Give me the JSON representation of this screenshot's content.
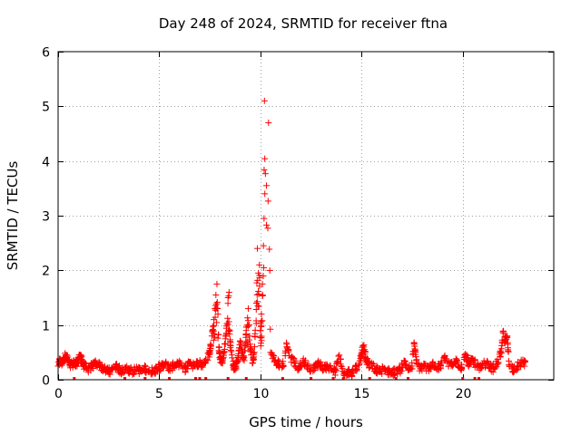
{
  "chart_data": {
    "type": "scatter",
    "title": "Day 248 of 2024, SRMTID for receiver ftna",
    "xlabel": "GPS time / hours",
    "ylabel": "SRMTID / TECUs",
    "xlim": [
      0,
      24.5
    ],
    "ylim": [
      0,
      6
    ],
    "xticks": [
      0,
      5,
      10,
      15,
      20
    ],
    "yticks": [
      0,
      1,
      2,
      3,
      4,
      5,
      6
    ],
    "grid": true,
    "marker": "plus",
    "color": "#ff0000",
    "series": [
      {
        "name": "SRMTID",
        "x": [
          0.0,
          0.1,
          0.2,
          0.3,
          0.4,
          0.5,
          0.6,
          0.7,
          0.8,
          0.9,
          1.0,
          1.1,
          1.2,
          1.3,
          1.5,
          1.7,
          1.9,
          2.1,
          2.3,
          2.5,
          2.7,
          2.9,
          3.1,
          3.3,
          3.5,
          3.7,
          3.9,
          4.1,
          4.3,
          4.5,
          4.7,
          4.9,
          5.1,
          5.3,
          5.5,
          5.7,
          5.9,
          6.1,
          6.3,
          6.5,
          6.7,
          6.9,
          7.1,
          7.3,
          7.5,
          7.6,
          7.7,
          7.75,
          7.8,
          7.85,
          7.9,
          7.95,
          8.0,
          8.1,
          8.2,
          8.3,
          8.4,
          8.45,
          8.5,
          8.6,
          8.7,
          8.8,
          8.9,
          9.0,
          9.1,
          9.2,
          9.3,
          9.4,
          9.5,
          9.6,
          9.7,
          9.8,
          9.85,
          9.9,
          9.95,
          10.0,
          10.05,
          10.1,
          10.15,
          10.2,
          10.3,
          10.4,
          10.5,
          10.7,
          10.9,
          11.1,
          11.3,
          11.5,
          11.7,
          11.9,
          12.1,
          12.3,
          12.5,
          12.7,
          12.9,
          13.1,
          13.3,
          13.5,
          13.7,
          13.9,
          14.1,
          14.3,
          14.5,
          14.7,
          14.9,
          15.0,
          15.1,
          15.2,
          15.3,
          15.5,
          15.7,
          15.9,
          16.1,
          16.3,
          16.5,
          16.7,
          16.9,
          17.1,
          17.3,
          17.5,
          17.6,
          17.7,
          17.9,
          18.1,
          18.3,
          18.5,
          18.7,
          18.9,
          19.1,
          19.3,
          19.5,
          19.7,
          19.9,
          20.1,
          20.2,
          20.3,
          20.5,
          20.7,
          20.9,
          21.1,
          21.3,
          21.5,
          21.7,
          21.9,
          22.0,
          22.1,
          22.2,
          22.3,
          22.5,
          22.7,
          22.9
        ],
        "y": [
          0.25,
          0.35,
          0.3,
          0.4,
          0.45,
          0.35,
          0.25,
          0.3,
          0.28,
          0.3,
          0.35,
          0.45,
          0.3,
          0.25,
          0.2,
          0.25,
          0.3,
          0.25,
          0.18,
          0.15,
          0.2,
          0.25,
          0.15,
          0.2,
          0.18,
          0.15,
          0.2,
          0.15,
          0.2,
          0.18,
          0.15,
          0.2,
          0.25,
          0.3,
          0.2,
          0.25,
          0.3,
          0.25,
          0.2,
          0.3,
          0.25,
          0.3,
          0.28,
          0.35,
          0.5,
          0.8,
          1.1,
          1.3,
          1.55,
          1.75,
          1.2,
          0.6,
          0.4,
          0.3,
          0.5,
          0.8,
          1.5,
          1.6,
          0.7,
          0.4,
          0.2,
          0.25,
          0.4,
          0.7,
          0.5,
          0.35,
          0.9,
          1.3,
          0.6,
          0.3,
          0.5,
          1.4,
          2.4,
          1.95,
          2.1,
          0.9,
          1.2,
          1.75,
          2.45,
          5.1,
          3.55,
          4.7,
          0.5,
          0.35,
          0.3,
          0.25,
          0.65,
          0.4,
          0.3,
          0.2,
          0.35,
          0.25,
          0.2,
          0.25,
          0.3,
          0.2,
          0.25,
          0.2,
          0.15,
          0.45,
          0.1,
          0.15,
          0.12,
          0.2,
          0.3,
          0.5,
          0.6,
          0.4,
          0.3,
          0.25,
          0.2,
          0.15,
          0.2,
          0.15,
          0.12,
          0.18,
          0.15,
          0.35,
          0.2,
          0.25,
          0.65,
          0.35,
          0.2,
          0.25,
          0.2,
          0.3,
          0.2,
          0.25,
          0.4,
          0.3,
          0.25,
          0.35,
          0.2,
          0.45,
          0.4,
          0.3,
          0.35,
          0.25,
          0.2,
          0.3,
          0.25,
          0.2,
          0.3,
          0.5,
          0.85,
          0.7,
          0.8,
          0.25,
          0.2,
          0.25,
          0.3
        ]
      }
    ],
    "zero_markers_x": [
      0.8,
      3.3,
      4.3,
      5.5,
      6.8,
      7.0,
      7.3,
      8.4,
      9.3,
      11.1,
      12.5,
      13.6,
      14.1,
      15.4,
      16.7,
      17.3,
      20.0,
      20.6,
      20.8
    ]
  }
}
